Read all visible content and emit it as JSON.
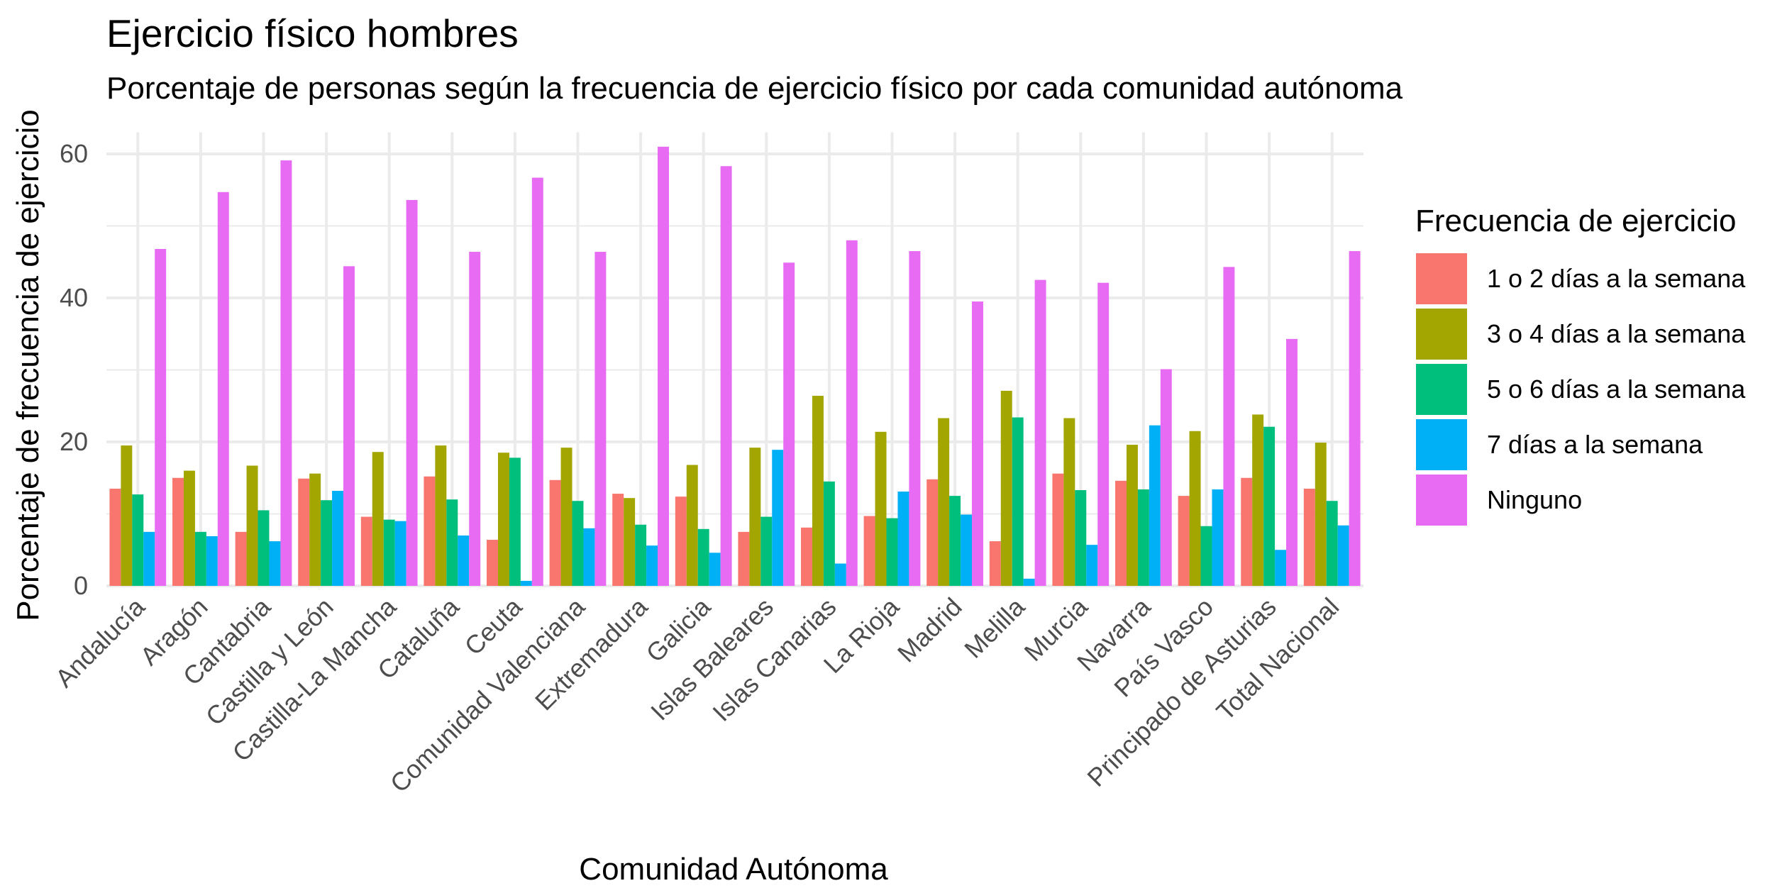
{
  "chart_data": {
    "type": "bar",
    "title": "Ejercicio físico hombres",
    "subtitle": "Porcentaje de personas según la frecuencia de ejercicio físico por cada comunidad autónoma",
    "xlabel": "Comunidad Autónoma",
    "ylabel": "Porcentaje de frecuencia de ejercicio",
    "ylim": [
      0,
      63
    ],
    "yticks": [
      0,
      20,
      40,
      60
    ],
    "grid": true,
    "legend_position": "right",
    "legend_title": "Frecuencia de ejercicio",
    "categories": [
      "Andalucía",
      "Aragón",
      "Cantabria",
      "Castilla y León",
      "Castilla-La Mancha",
      "Cataluña",
      "Ceuta",
      "Comunidad Valenciana",
      "Extremadura",
      "Galicia",
      "Islas Baleares",
      "Islas Canarias",
      "La Rioja",
      "Madrid",
      "Melilla",
      "Murcia",
      "Navarra",
      "País Vasco",
      "Principado de Asturias",
      "Total Nacional"
    ],
    "series": [
      {
        "name": "1 o 2 días a la semana",
        "color": "#F8766D",
        "values": [
          13.5,
          15.0,
          7.5,
          14.9,
          9.6,
          15.2,
          6.4,
          14.7,
          12.8,
          12.4,
          7.5,
          8.1,
          9.7,
          14.8,
          6.2,
          15.6,
          14.6,
          12.5,
          15.0,
          13.5
        ]
      },
      {
        "name": "3 o 4 días a la semana",
        "color": "#A3A500",
        "values": [
          19.5,
          16.0,
          16.7,
          15.6,
          18.6,
          19.5,
          18.5,
          19.2,
          12.2,
          16.8,
          19.2,
          26.4,
          21.4,
          23.3,
          27.1,
          23.3,
          19.6,
          21.5,
          23.8,
          19.9
        ]
      },
      {
        "name": "5 o 6 días a la semana",
        "color": "#00BF7D",
        "values": [
          12.7,
          7.5,
          10.5,
          11.9,
          9.2,
          12.0,
          17.8,
          11.8,
          8.5,
          7.9,
          9.6,
          14.5,
          9.4,
          12.5,
          23.4,
          13.3,
          13.4,
          8.3,
          22.1,
          11.8
        ]
      },
      {
        "name": "7 días a la semana",
        "color": "#00B0F6",
        "values": [
          7.5,
          6.9,
          6.2,
          13.2,
          9.0,
          7.0,
          0.7,
          8.0,
          5.6,
          4.6,
          18.9,
          3.1,
          13.1,
          9.9,
          1.0,
          5.7,
          22.3,
          13.4,
          5.0,
          8.4
        ]
      },
      {
        "name": "Ninguno",
        "color": "#E76BF3",
        "values": [
          46.8,
          54.7,
          59.1,
          44.4,
          53.6,
          46.4,
          56.7,
          46.4,
          61.0,
          58.3,
          44.9,
          48.0,
          46.5,
          39.5,
          42.5,
          42.1,
          30.1,
          44.3,
          34.3,
          46.5
        ]
      }
    ]
  }
}
